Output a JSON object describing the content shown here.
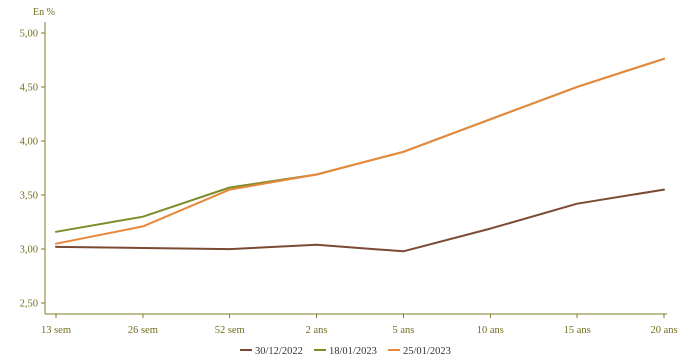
{
  "chart_data": {
    "type": "line",
    "title": "",
    "ylabel": "En %",
    "xlabel": "",
    "categories": [
      "13 sem",
      "26 sem",
      "52 sem",
      "2 ans",
      "5 ans",
      "10 ans",
      "15 ans",
      "20 ans"
    ],
    "ylim": [
      2.4,
      5.1
    ],
    "yticks": [
      2.5,
      3.0,
      3.5,
      4.0,
      4.5,
      5.0
    ],
    "ytick_labels": [
      "2,50",
      "3,00",
      "3,50",
      "4,00",
      "4,50",
      "5,00"
    ],
    "grid": false,
    "legend_position": "bottom",
    "series": [
      {
        "name": "30/12/2022",
        "color": "#7a4a33",
        "values": [
          3.02,
          3.01,
          3.0,
          3.04,
          2.98,
          3.19,
          3.42,
          3.55
        ]
      },
      {
        "name": "18/01/2023",
        "color": "#7f8c2a",
        "values": [
          3.16,
          3.3,
          3.57,
          3.69,
          3.9,
          4.2,
          4.5,
          4.76
        ]
      },
      {
        "name": "25/01/2023",
        "color": "#e8883a",
        "values": [
          3.05,
          3.21,
          3.55,
          3.69,
          3.9,
          4.2,
          4.5,
          4.76
        ]
      }
    ]
  }
}
